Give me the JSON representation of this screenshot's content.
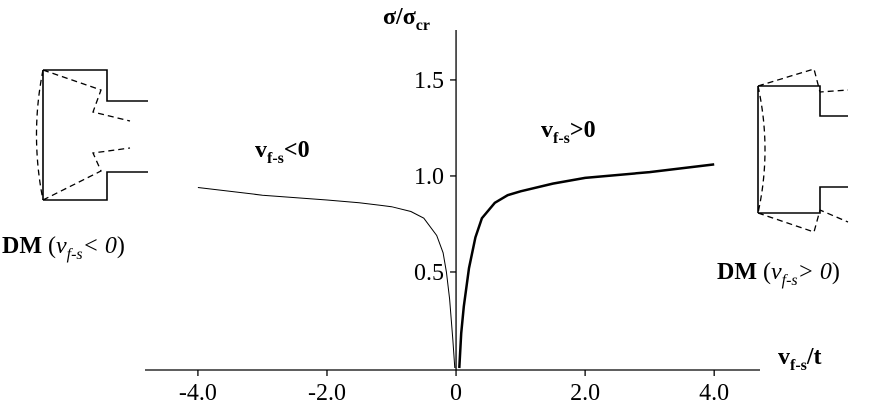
{
  "chart_data": {
    "type": "line",
    "y_label": {
      "main": "σ/σ",
      "sub": "cr"
    },
    "x_label": {
      "main": "v",
      "sub": "f-s",
      "tail": "/t"
    },
    "annotations": [
      {
        "main": "v",
        "sub": "f-s",
        "tail": "<0"
      },
      {
        "main": "v",
        "sub": "f-s",
        "tail": ">0"
      },
      {
        "parts": [
          "DM",
          " (",
          "v",
          "f-s",
          "< 0",
          ")"
        ]
      },
      {
        "parts": [
          "DM",
          " (",
          "v",
          "f-s",
          "> 0",
          ")"
        ]
      }
    ],
    "xlim": [
      -4.82,
      4.71
    ],
    "ylim": [
      0,
      1.76
    ],
    "xticks": [
      {
        "value": -4,
        "label": "-4.0"
      },
      {
        "value": -2,
        "label": "-2.0"
      },
      0,
      {
        "value": 2,
        "label": "2.0"
      },
      {
        "value": 4,
        "label": "4.0"
      }
    ],
    "yticks": [
      0.5,
      {
        "value": 1,
        "label": "1.0"
      },
      1.5
    ],
    "series": [
      {
        "color": "#000000",
        "width": 1,
        "x": [
          -4.0,
          -3.0,
          -2.0,
          -1.5,
          -1.0,
          -0.7,
          -0.5,
          -0.3,
          -0.2,
          -0.15,
          -0.1,
          -0.05,
          -0.02
        ],
        "values": [
          0.94,
          0.9,
          0.875,
          0.86,
          0.84,
          0.815,
          0.78,
          0.69,
          0.6,
          0.5,
          0.36,
          0.15,
          0.0
        ]
      },
      {
        "color": "#000000",
        "width": 2.5,
        "x": [
          0.05,
          0.08,
          0.12,
          0.2,
          0.3,
          0.4,
          0.6,
          0.8,
          1.0,
          1.5,
          2.0,
          3.0,
          4.0
        ],
        "values": [
          0.0,
          0.18,
          0.32,
          0.52,
          0.68,
          0.78,
          0.86,
          0.9,
          0.92,
          0.96,
          0.99,
          1.02,
          1.06
        ]
      }
    ]
  }
}
